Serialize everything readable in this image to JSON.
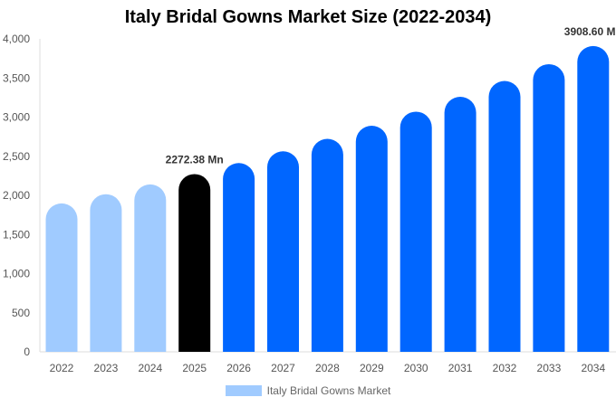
{
  "chart_data": {
    "type": "bar",
    "title": "Italy Bridal Gowns Market Size (2022-2034)",
    "categories": [
      "2022",
      "2023",
      "2024",
      "2025",
      "2026",
      "2027",
      "2028",
      "2029",
      "2030",
      "2031",
      "2032",
      "2033",
      "2034"
    ],
    "series": [
      {
        "name": "Italy Bridal Gowns Market",
        "values": [
          1897,
          2015,
          2140,
          2272.38,
          2413,
          2563,
          2722,
          2890,
          3070,
          3260,
          3462,
          3677,
          3908.6
        ]
      }
    ],
    "data_labels": [
      {
        "category": "2025",
        "text": "2272.38 Mn"
      },
      {
        "category": "2034",
        "text": "3908.60 Mn"
      }
    ],
    "ylim": [
      0,
      4000
    ],
    "yticks": [
      0,
      500,
      1000,
      1500,
      2000,
      2500,
      3000,
      3500,
      4000
    ],
    "ytick_labels": [
      "0",
      "500",
      "1,000",
      "1,500",
      "2,000",
      "2,500",
      "3,000",
      "3,500",
      "4,000"
    ],
    "grid": false,
    "legend_position": "bottom",
    "colors": {
      "historical": "#a0cbff",
      "base_year": "#000000",
      "forecast": "#0066ff",
      "legend": "#a0cbff"
    }
  }
}
